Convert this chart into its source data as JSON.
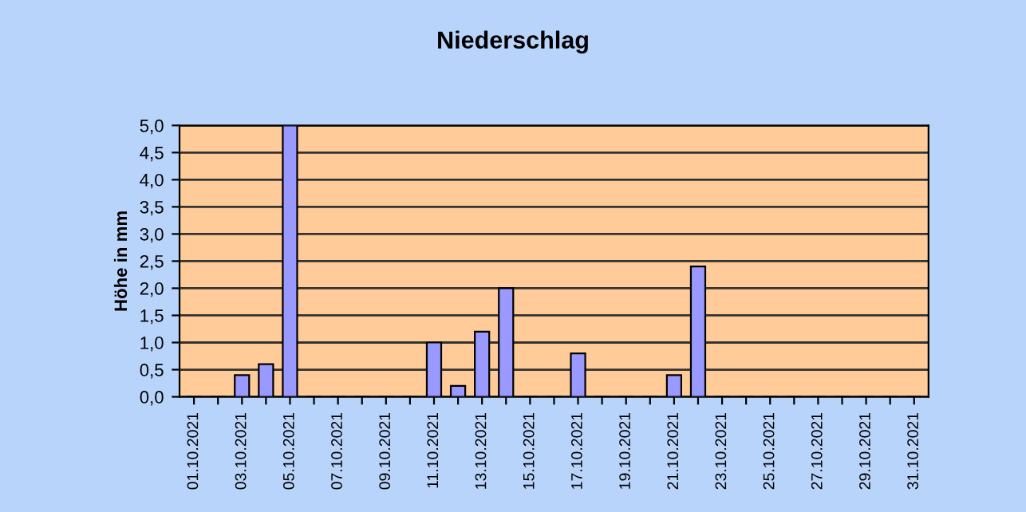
{
  "chart_data": {
    "type": "bar",
    "title": "Niederschlag",
    "ylabel": "Höhe in mm",
    "categories": [
      "01.10.2021",
      null,
      "03.10.2021",
      null,
      "05.10.2021",
      null,
      "07.10.2021",
      null,
      "09.10.2021",
      null,
      "11.10.2021",
      null,
      "13.10.2021",
      null,
      "15.10.2021",
      null,
      "17.10.2021",
      null,
      "19.10.2021",
      null,
      "21.10.2021",
      null,
      "23.10.2021",
      null,
      "25.10.2021",
      null,
      "27.10.2021",
      null,
      "29.10.2021",
      null,
      "31.10.2021"
    ],
    "values": [
      0,
      0,
      0.4,
      0.6,
      5.0,
      0,
      0,
      0,
      0,
      0,
      1.0,
      0.2,
      1.2,
      2.0,
      0,
      0,
      0.8,
      0,
      0,
      0,
      0.4,
      2.4,
      0,
      0,
      0,
      0,
      0,
      0,
      0,
      0,
      0
    ],
    "color": "#9999ff",
    "ylim": [
      0,
      5
    ],
    "yticks": [
      {
        "value": 0,
        "label": "0,0"
      },
      {
        "value": 0.5,
        "label": "0,5"
      },
      {
        "value": 1,
        "label": "1,0"
      },
      {
        "value": 1.5,
        "label": "1,5"
      },
      {
        "value": 2,
        "label": "2,0"
      },
      {
        "value": 2.5,
        "label": "2,5"
      },
      {
        "value": 3,
        "label": "3,0"
      },
      {
        "value": 3.5,
        "label": "3,5"
      },
      {
        "value": 4,
        "label": "4,0"
      },
      {
        "value": 4.5,
        "label": "4,5"
      },
      {
        "value": 5,
        "label": "5,0"
      }
    ],
    "grid": "y"
  }
}
